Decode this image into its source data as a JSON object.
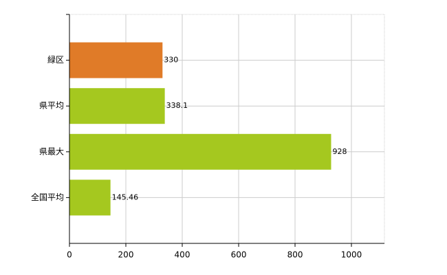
{
  "chart_data": {
    "type": "bar",
    "orientation": "horizontal",
    "categories": [
      "緑区",
      "県平均",
      "県最大",
      "全国平均"
    ],
    "values": [
      330,
      338.1,
      928,
      145.46
    ],
    "colors": [
      "#e07b28",
      "#a5c81f",
      "#a5c81f",
      "#a5c81f"
    ],
    "xlim": [
      0,
      1117
    ],
    "xticks": [
      0,
      200,
      400,
      600,
      800,
      1000
    ],
    "grid": true
  }
}
